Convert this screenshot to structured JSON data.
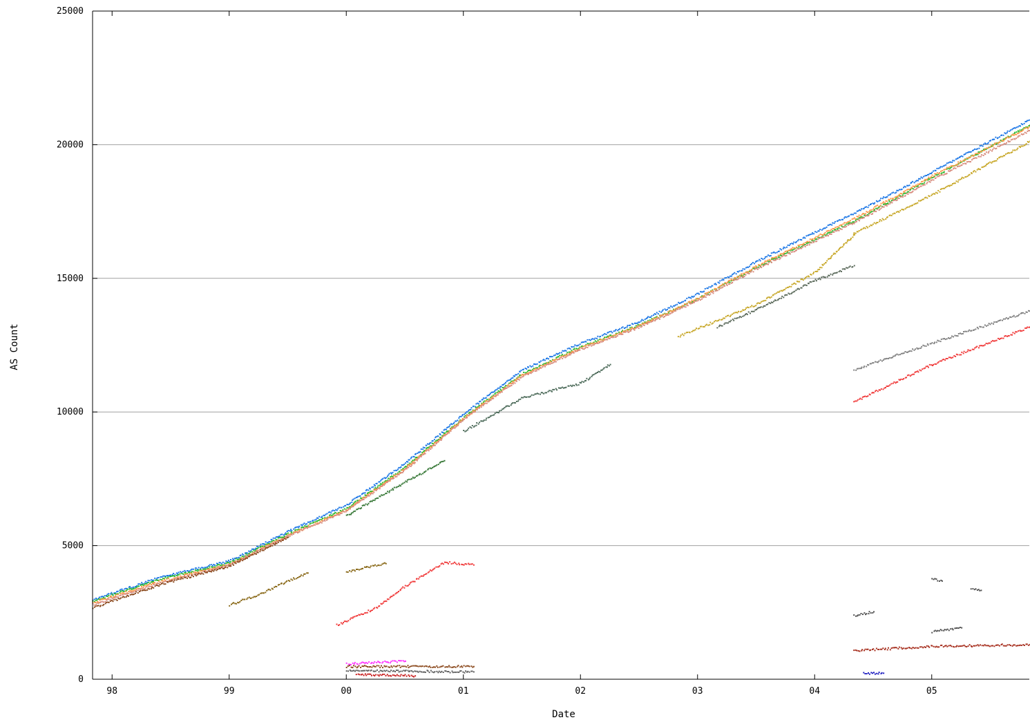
{
  "chart_data": {
    "type": "scatter",
    "title": "",
    "xlabel": "Date",
    "ylabel": "AS Count",
    "xlim": [
      "1997-11",
      "2005-11"
    ],
    "ylim": [
      0,
      25000
    ],
    "grid": "horizontal",
    "x_tick_labels": [
      "98",
      "99",
      "00",
      "01",
      "02",
      "03",
      "04",
      "05"
    ],
    "x_tick_years": [
      1998,
      1999,
      2000,
      2001,
      2002,
      2003,
      2004,
      2005
    ],
    "y_ticks": [
      0,
      5000,
      10000,
      15000,
      20000,
      25000
    ],
    "y_tick_labels": [
      "0",
      "5000",
      "10000",
      "15000",
      "20000",
      "25000"
    ],
    "series": [
      {
        "color": "#1e78e6",
        "points": [
          [
            "1997-11",
            3000
          ],
          [
            "1998-06",
            3850
          ],
          [
            "1999-01",
            4450
          ],
          [
            "1999-07",
            5550
          ],
          [
            "2000-01",
            6550
          ],
          [
            "2000-07",
            8100
          ],
          [
            "2001-01",
            9950
          ],
          [
            "2001-07",
            11600
          ],
          [
            "2002-01",
            12600
          ],
          [
            "2002-07",
            13400
          ],
          [
            "2003-01",
            14450
          ],
          [
            "2003-07",
            15650
          ],
          [
            "2004-01",
            16750
          ],
          [
            "2004-05",
            17450
          ],
          [
            "2005-01",
            19000
          ],
          [
            "2005-11",
            20950
          ]
        ]
      },
      {
        "color": "#2db82d",
        "points": [
          [
            "1997-11",
            2950
          ],
          [
            "1998-06",
            3780
          ],
          [
            "1999-01",
            4380
          ],
          [
            "1999-07",
            5460
          ],
          [
            "2000-01",
            6420
          ],
          [
            "2000-07",
            7950
          ],
          [
            "2001-01",
            9820
          ],
          [
            "2001-07",
            11450
          ],
          [
            "2002-01",
            12470
          ],
          [
            "2002-07",
            13270
          ],
          [
            "2003-01",
            14270
          ],
          [
            "2003-07",
            15440
          ],
          [
            "2004-01",
            16480
          ],
          [
            "2004-05",
            17150
          ],
          [
            "2005-01",
            18800
          ],
          [
            "2005-11",
            20750
          ]
        ]
      },
      {
        "color": "#ff9a4a",
        "points": [
          [
            "1997-11",
            2880
          ],
          [
            "1998-06",
            3700
          ],
          [
            "1999-01",
            4320
          ],
          [
            "1999-07",
            5400
          ],
          [
            "2000-01",
            6360
          ],
          [
            "2000-07",
            7900
          ],
          [
            "2001-01",
            9780
          ],
          [
            "2001-07",
            11400
          ],
          [
            "2002-01",
            12420
          ],
          [
            "2002-07",
            13250
          ],
          [
            "2003-01",
            14280
          ],
          [
            "2003-07",
            15480
          ],
          [
            "2004-01",
            16550
          ],
          [
            "2004-05",
            17250
          ],
          [
            "2005-01",
            18850
          ],
          [
            "2005-11",
            20700
          ]
        ]
      },
      {
        "color": "#d88c7e",
        "points": [
          [
            "1997-11",
            2820
          ],
          [
            "1998-06",
            3640
          ],
          [
            "1999-01",
            4300
          ],
          [
            "1999-07",
            5380
          ],
          [
            "2000-01",
            6330
          ],
          [
            "2000-07",
            7860
          ],
          [
            "2001-01",
            9750
          ],
          [
            "2001-07",
            11350
          ],
          [
            "2002-01",
            12380
          ],
          [
            "2002-07",
            13200
          ],
          [
            "2003-01",
            14200
          ],
          [
            "2003-07",
            15380
          ],
          [
            "2004-01",
            16420
          ],
          [
            "2004-05",
            17100
          ],
          [
            "2005-01",
            18700
          ],
          [
            "2005-11",
            20550
          ]
        ]
      },
      {
        "color": "#8b4a1e",
        "points": [
          [
            "1997-11",
            2700
          ],
          [
            "1998-06",
            3580
          ],
          [
            "1999-01",
            4260
          ],
          [
            "1999-07",
            5340
          ]
        ]
      },
      {
        "color": "#c8a82a",
        "points": [
          [
            "2002-11",
            12850
          ],
          [
            "2003-07",
            14050
          ],
          [
            "2004-01",
            15250
          ],
          [
            "2004-05",
            16650
          ],
          [
            "2004-05",
            16700
          ],
          [
            "2005-01",
            18150
          ],
          [
            "2005-11",
            20150
          ]
        ]
      },
      {
        "color": "#3a7a3a",
        "points": [
          [
            "2000-01",
            6150
          ],
          [
            "2000-07",
            7400
          ],
          [
            "2000-11",
            8200
          ]
        ]
      },
      {
        "color": "#4d6b5a",
        "points": [
          [
            "2001-01",
            9300
          ],
          [
            "2001-07",
            10550
          ],
          [
            "2002-01",
            11100
          ],
          [
            "2002-04",
            11800
          ]
        ]
      },
      {
        "color": "#5c6b5c",
        "points": [
          [
            "2003-03",
            13200
          ],
          [
            "2003-09",
            14200
          ],
          [
            "2004-01",
            14950
          ],
          [
            "2004-05",
            15500
          ]
        ]
      },
      {
        "color": "#808080",
        "points": [
          [
            "2004-05",
            11600
          ],
          [
            "2005-01",
            12600
          ],
          [
            "2005-11",
            13800
          ]
        ]
      },
      {
        "color": "#f03c3c",
        "points": [
          [
            "2004-05",
            10400
          ],
          [
            "2005-01",
            11800
          ],
          [
            "2005-11",
            13200
          ]
        ]
      },
      {
        "color": "#f03c3c",
        "points": [
          [
            "1999-12",
            2050
          ],
          [
            "2000-04",
            2700
          ],
          [
            "2000-07",
            3500
          ],
          [
            "2000-11",
            4400
          ],
          [
            "2001-02",
            4300
          ]
        ]
      },
      {
        "color": "#8a6a1a",
        "points": [
          [
            "1999-01",
            2800
          ],
          [
            "1999-04",
            3200
          ],
          [
            "1999-07",
            3700
          ],
          [
            "1999-09",
            4000
          ]
        ]
      },
      {
        "color": "#8a6a1a",
        "points": [
          [
            "2000-01",
            4050
          ],
          [
            "2000-05",
            4350
          ]
        ]
      },
      {
        "color": "#a83222",
        "points": [
          [
            "2004-05",
            1100
          ],
          [
            "2005-01",
            1250
          ],
          [
            "2005-11",
            1320
          ]
        ]
      },
      {
        "color": "#505050",
        "points": [
          [
            "2004-05",
            2400
          ],
          [
            "2004-07",
            2550
          ]
        ]
      },
      {
        "color": "#505050",
        "points": [
          [
            "2005-01",
            1800
          ],
          [
            "2005-04",
            1950
          ]
        ]
      },
      {
        "color": "#505050",
        "points": [
          [
            "2005-01",
            3800
          ],
          [
            "2005-02",
            3700
          ]
        ]
      },
      {
        "color": "#505050",
        "points": [
          [
            "2005-05",
            3400
          ],
          [
            "2005-06",
            3350
          ]
        ]
      },
      {
        "color": "#ff33ff",
        "points": [
          [
            "2000-01",
            600
          ],
          [
            "2000-07",
            700
          ]
        ]
      },
      {
        "color": "#8b4a1e",
        "points": [
          [
            "2000-01",
            500
          ],
          [
            "2001-02",
            500
          ]
        ]
      },
      {
        "color": "#606060",
        "points": [
          [
            "2000-01",
            350
          ],
          [
            "2001-02",
            300
          ]
        ]
      },
      {
        "color": "#c82020",
        "points": [
          [
            "2000-02",
            200
          ],
          [
            "2000-08",
            150
          ]
        ]
      },
      {
        "color": "#2020c0",
        "points": [
          [
            "2004-06",
            250
          ],
          [
            "2004-08",
            250
          ]
        ]
      }
    ]
  }
}
